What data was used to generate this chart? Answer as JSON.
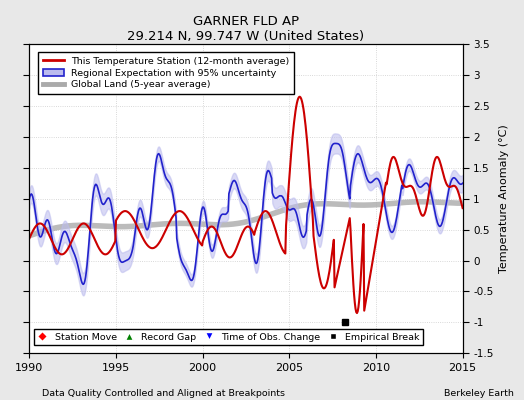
{
  "title": "GARNER FLD AP",
  "subtitle": "29.214 N, 99.747 W (United States)",
  "xlabel_left": "Data Quality Controlled and Aligned at Breakpoints",
  "xlabel_right": "Berkeley Earth",
  "ylabel": "Temperature Anomaly (°C)",
  "xlim": [
    1990,
    2015
  ],
  "ylim": [
    -1.5,
    3.5
  ],
  "yticks": [
    -1.5,
    -1.0,
    -0.5,
    0.0,
    0.5,
    1.0,
    1.5,
    2.0,
    2.5,
    3.0,
    3.5
  ],
  "xticks": [
    1990,
    1995,
    2000,
    2005,
    2010,
    2015
  ],
  "bg_color": "#e8e8e8",
  "plot_bg_color": "#ffffff",
  "red_color": "#cc0000",
  "blue_color": "#2222cc",
  "blue_fill_color": "#bbbbee",
  "gray_color": "#aaaaaa",
  "legend_items": [
    "This Temperature Station (12-month average)",
    "Regional Expectation with 95% uncertainty",
    "Global Land (5-year average)"
  ],
  "marker_labels": [
    "Station Move",
    "Record Gap",
    "Time of Obs. Change",
    "Empirical Break"
  ],
  "empirical_break_x": 2008.2
}
